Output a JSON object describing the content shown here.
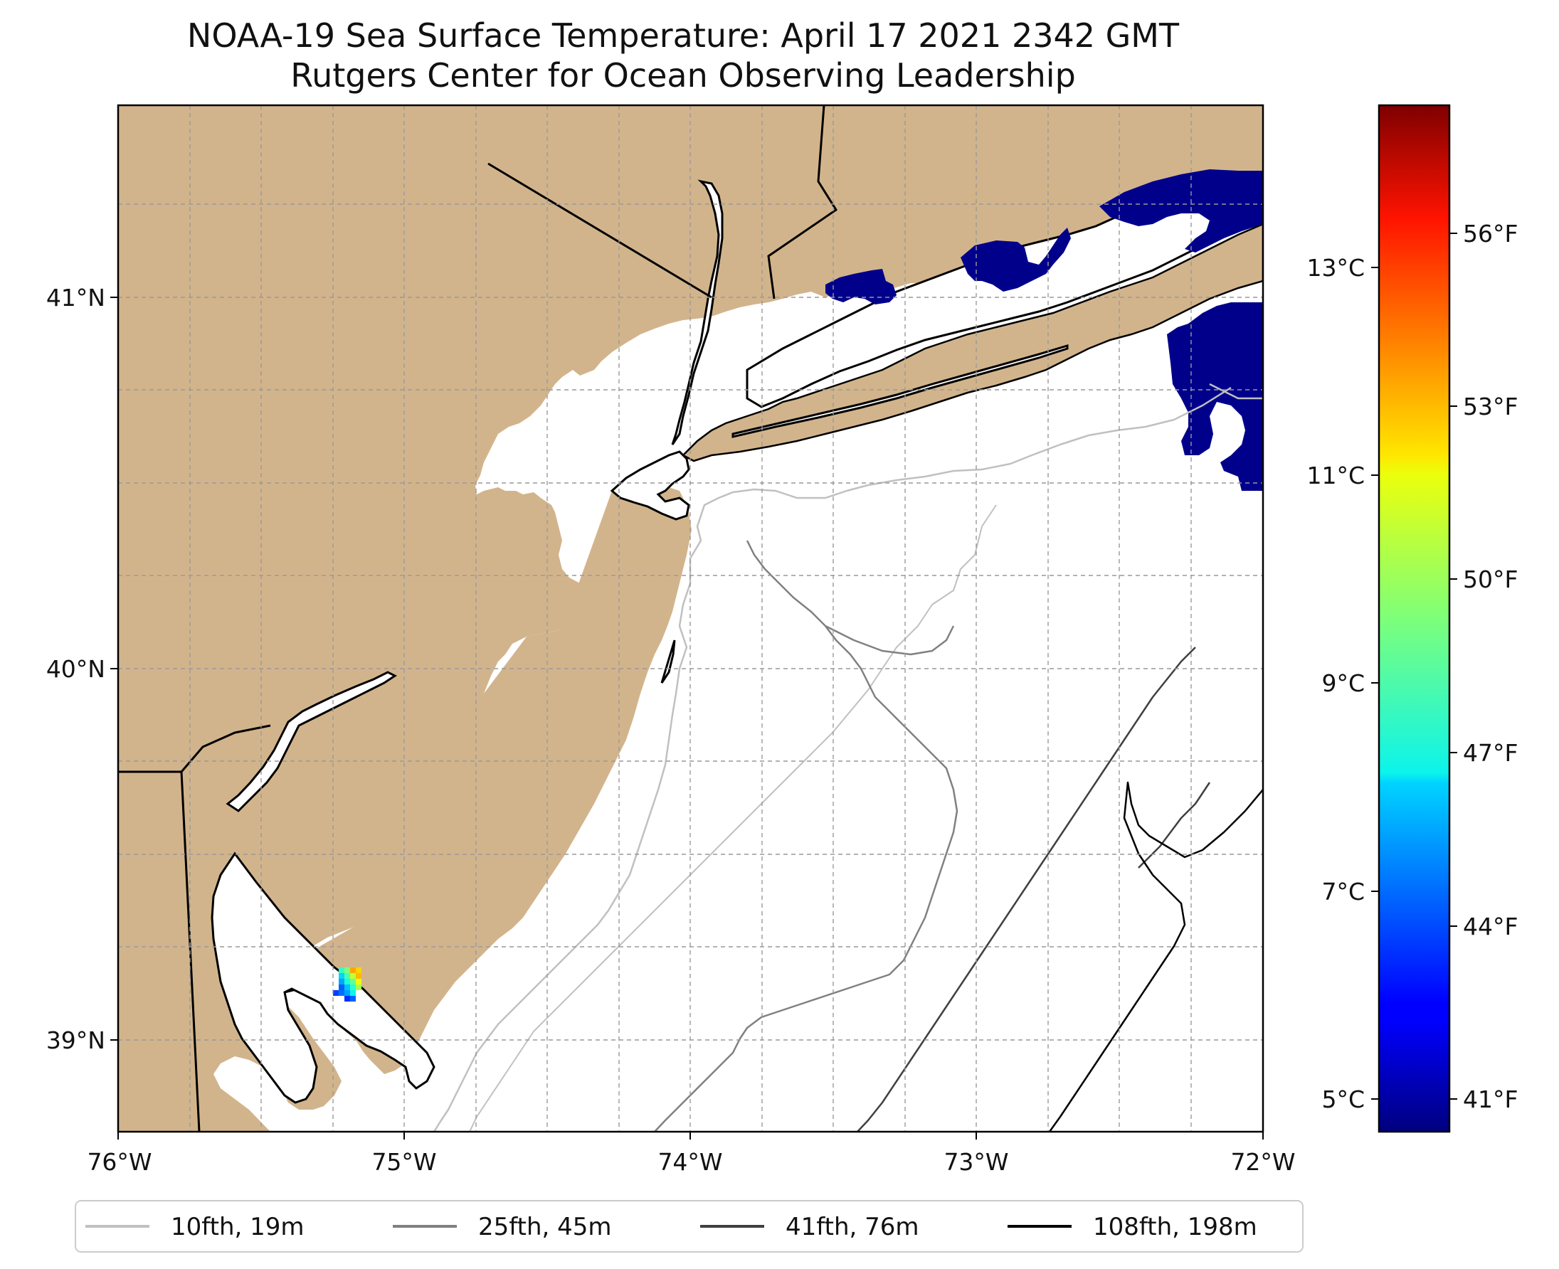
{
  "title": {
    "line1": "NOAA-19 Sea Surface Temperature: April 17 2021 2342 GMT",
    "line2": "Rutgers Center for Ocean Observing Leadership"
  },
  "colors": {
    "land": "#d2b48c",
    "ocean": "#ffffff",
    "no_data_cold": "#00008b",
    "coastline": "#000000"
  },
  "map": {
    "lon_range": [
      -76,
      -72
    ],
    "lat_range": [
      38.75,
      41.55
    ],
    "lon_ticks": [
      {
        "value": -76,
        "label": "76°W"
      },
      {
        "value": -75,
        "label": "75°W"
      },
      {
        "value": -74,
        "label": "74°W"
      },
      {
        "value": -73,
        "label": "73°W"
      },
      {
        "value": -72,
        "label": "72°W"
      }
    ],
    "lat_ticks": [
      {
        "value": 41,
        "label": "41°N"
      },
      {
        "value": 40,
        "label": "40°N"
      },
      {
        "value": 39,
        "label": "39°N"
      }
    ],
    "gridlines": true
  },
  "colorbar": {
    "colormap": "jet",
    "celsius_ticks": [
      {
        "value": 5,
        "label": "5°C"
      },
      {
        "value": 7,
        "label": "7°C"
      },
      {
        "value": 9,
        "label": "9°C"
      },
      {
        "value": 11,
        "label": "11°C"
      },
      {
        "value": 13,
        "label": "13°C"
      }
    ],
    "fahrenheit_ticks": [
      {
        "value": 41,
        "label": "41°F"
      },
      {
        "value": 44,
        "label": "44°F"
      },
      {
        "value": 47,
        "label": "47°F"
      },
      {
        "value": 50,
        "label": "50°F"
      },
      {
        "value": 53,
        "label": "53°F"
      },
      {
        "value": 56,
        "label": "56°F"
      }
    ]
  },
  "legend": [
    {
      "label": "10fth, 19m",
      "color": "#c0c0c0"
    },
    {
      "label": "25fth, 45m",
      "color": "#808080"
    },
    {
      "label": "41fth, 76m",
      "color": "#404040"
    },
    {
      "label": "108fth, 198m",
      "color": "#000000"
    }
  ]
}
